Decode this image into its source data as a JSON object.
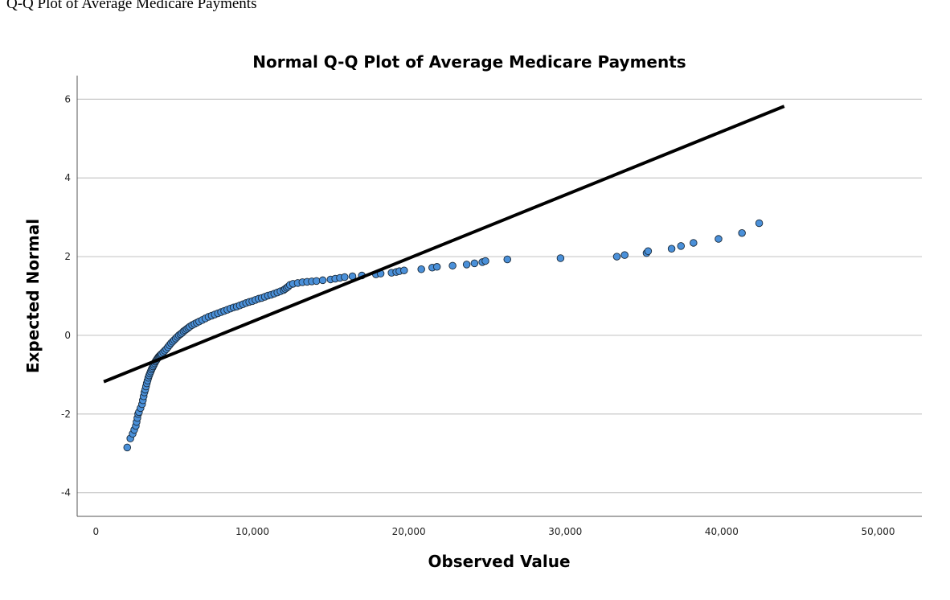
{
  "caption": "Q-Q Plot of Average Medicare Payments",
  "chart_data": {
    "type": "scatter",
    "title": "Normal Q-Q Plot of Average Medicare Payments",
    "xlabel": "Observed Value",
    "ylabel": "Expected Normal",
    "xlim": [
      -1200,
      52800
    ],
    "ylim": [
      -4.6,
      6.6
    ],
    "x_ticks": [
      0,
      10000,
      20000,
      30000,
      40000,
      50000
    ],
    "x_tick_labels": [
      "0",
      "10,000",
      "20,000",
      "30,000",
      "40,000",
      "50,000"
    ],
    "y_ticks": [
      6,
      4,
      2,
      0,
      -2,
      -4
    ],
    "y_tick_labels": [
      "6",
      "4",
      "2",
      "0",
      "-2",
      "-4"
    ],
    "grid": "horizontal",
    "reference_line": {
      "x": [
        500,
        44000
      ],
      "y": [
        -1.18,
        5.82
      ]
    },
    "points": {
      "x": [
        2000,
        2200,
        2350,
        2450,
        2550,
        2600,
        2650,
        2700,
        2750,
        2850,
        2950,
        3000,
        3050,
        3100,
        3150,
        3200,
        3250,
        3300,
        3350,
        3400,
        3450,
        3500,
        3550,
        3600,
        3650,
        3700,
        3750,
        3800,
        3850,
        3900,
        3950,
        4000,
        4050,
        4100,
        4150,
        4200,
        4300,
        4400,
        4500,
        4600,
        4700,
        4800,
        4900,
        5000,
        5100,
        5200,
        5300,
        5400,
        5500,
        5600,
        5700,
        5800,
        5900,
        6000,
        6150,
        6300,
        6450,
        6600,
        6800,
        7000,
        7200,
        7400,
        7600,
        7800,
        8000,
        8200,
        8400,
        8600,
        8800,
        9000,
        9200,
        9400,
        9600,
        9800,
        10000,
        10200,
        10400,
        10600,
        10800,
        11000,
        11200,
        11400,
        11600,
        11800,
        12000,
        12100,
        12200,
        12300,
        12400,
        12600,
        12900,
        13200,
        13500,
        13800,
        14100,
        14500,
        15000,
        15300,
        15600,
        15900,
        16400,
        17000,
        17900,
        18200,
        18900,
        19200,
        19400,
        19700,
        20800,
        21500,
        21800,
        22800,
        23700,
        24200,
        24700,
        24900,
        26300,
        29700,
        33300,
        33800,
        35200,
        35300,
        36800,
        37400,
        38200,
        39800,
        41300,
        42400
      ],
      "y": [
        -2.85,
        -2.62,
        -2.5,
        -2.4,
        -2.3,
        -2.2,
        -2.1,
        -2.0,
        -1.95,
        -1.85,
        -1.75,
        -1.65,
        -1.55,
        -1.45,
        -1.38,
        -1.3,
        -1.22,
        -1.15,
        -1.08,
        -1.02,
        -0.97,
        -0.92,
        -0.87,
        -0.83,
        -0.79,
        -0.75,
        -0.71,
        -0.67,
        -0.64,
        -0.61,
        -0.58,
        -0.55,
        -0.53,
        -0.51,
        -0.49,
        -0.47,
        -0.43,
        -0.39,
        -0.35,
        -0.3,
        -0.25,
        -0.2,
        -0.16,
        -0.12,
        -0.08,
        -0.04,
        0.0,
        0.03,
        0.06,
        0.1,
        0.13,
        0.16,
        0.19,
        0.22,
        0.26,
        0.29,
        0.32,
        0.35,
        0.39,
        0.43,
        0.47,
        0.5,
        0.53,
        0.56,
        0.59,
        0.62,
        0.65,
        0.68,
        0.71,
        0.73,
        0.76,
        0.79,
        0.82,
        0.85,
        0.87,
        0.9,
        0.93,
        0.95,
        0.98,
        1.01,
        1.03,
        1.06,
        1.09,
        1.12,
        1.15,
        1.18,
        1.21,
        1.24,
        1.28,
        1.31,
        1.33,
        1.35,
        1.36,
        1.37,
        1.38,
        1.4,
        1.42,
        1.44,
        1.46,
        1.48,
        1.5,
        1.52,
        1.55,
        1.57,
        1.59,
        1.61,
        1.63,
        1.65,
        1.68,
        1.72,
        1.74,
        1.77,
        1.8,
        1.83,
        1.86,
        1.89,
        1.93,
        1.96,
        2.0,
        2.04,
        2.09,
        2.14,
        2.2,
        2.27,
        2.35,
        2.45,
        2.6,
        2.85
      ]
    }
  }
}
